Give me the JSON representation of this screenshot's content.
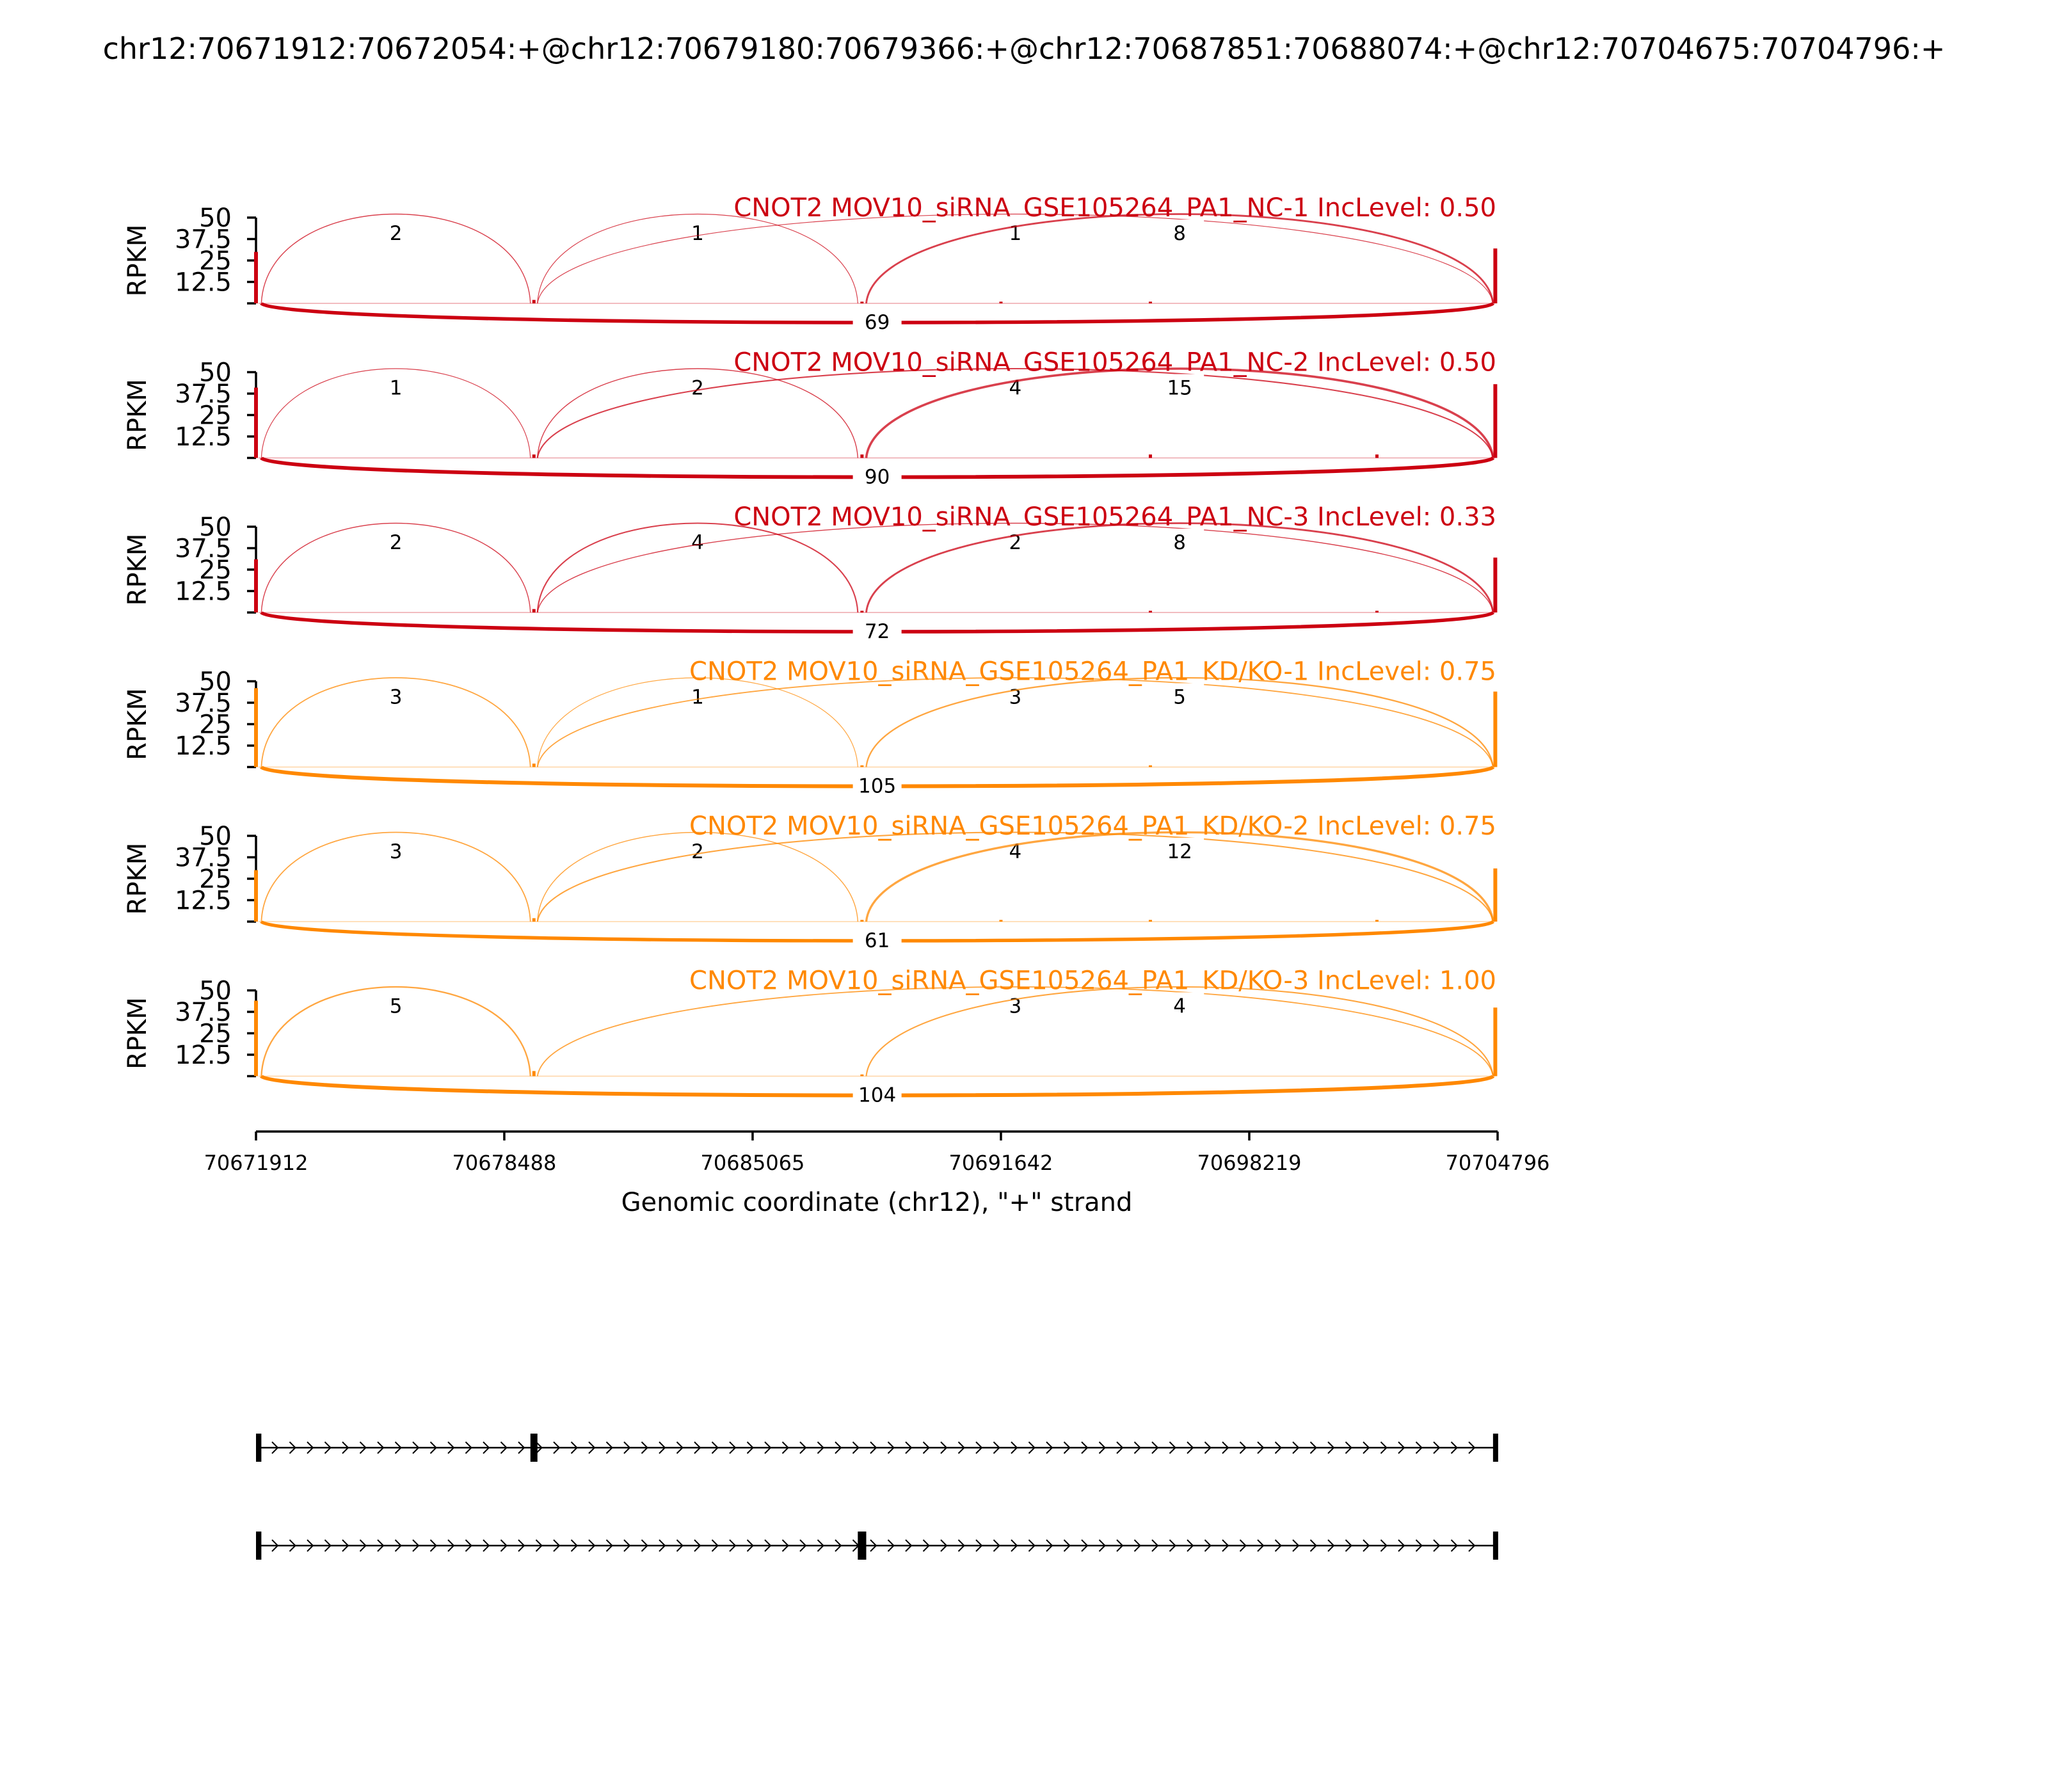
{
  "title": "chr12:70671912:70672054:+@chr12:70679180:70679366:+@chr12:70687851:70688074:+@chr12:70704675:70704796:+",
  "chart_data": {
    "type": "sashimi",
    "xlabel": "Genomic coordinate (chr12), \"+\" strand",
    "xlim": [
      70671912,
      70704796
    ],
    "xticks": [
      "70671912",
      "70678488",
      "70685065",
      "70691642",
      "70698219",
      "70704796"
    ],
    "ylabel": "RPKM",
    "ylim": [
      0,
      50
    ],
    "yticks": [
      "12.5",
      "25",
      "37.5",
      "50"
    ],
    "exons": [
      {
        "start": 70671912,
        "end": 70672054
      },
      {
        "start": 70679180,
        "end": 70679366
      },
      {
        "start": 70687851,
        "end": 70688074
      },
      {
        "start": 70704675,
        "end": 70704796
      }
    ],
    "samples": [
      {
        "title": "CNOT2 MOV10_siRNA_GSE105264_PA1_NC-1 IncLevel: 0.50",
        "color": "#cc0011",
        "exon_peaks": [
          {
            "x": 70671912,
            "y": 30
          },
          {
            "x": 70679273,
            "y": 2
          },
          {
            "x": 70687962,
            "y": 1
          },
          {
            "x": 70691642,
            "y": 1
          },
          {
            "x": 70695600,
            "y": 1
          },
          {
            "x": 70704735,
            "y": 32
          }
        ],
        "junctions": [
          {
            "from": 70672054,
            "to": 70679180,
            "count": "2",
            "side": "above"
          },
          {
            "from": 70679366,
            "to": 70687851,
            "count": "1",
            "side": "above"
          },
          {
            "from": 70679366,
            "to": 70704675,
            "count": "1",
            "side": "above"
          },
          {
            "from": 70688074,
            "to": 70704675,
            "count": "8",
            "side": "above"
          },
          {
            "from": 70672054,
            "to": 70704675,
            "count": "69",
            "side": "below"
          }
        ]
      },
      {
        "title": "CNOT2 MOV10_siRNA_GSE105264_PA1_NC-2 IncLevel: 0.50",
        "color": "#cc0011",
        "exon_peaks": [
          {
            "x": 70671912,
            "y": 41
          },
          {
            "x": 70679273,
            "y": 2
          },
          {
            "x": 70687962,
            "y": 2
          },
          {
            "x": 70695600,
            "y": 2
          },
          {
            "x": 70701600,
            "y": 2
          },
          {
            "x": 70704735,
            "y": 43
          }
        ],
        "junctions": [
          {
            "from": 70672054,
            "to": 70679180,
            "count": "1",
            "side": "above"
          },
          {
            "from": 70679366,
            "to": 70687851,
            "count": "2",
            "side": "above"
          },
          {
            "from": 70679366,
            "to": 70704675,
            "count": "4",
            "side": "above"
          },
          {
            "from": 70688074,
            "to": 70704675,
            "count": "15",
            "side": "above"
          },
          {
            "from": 70672054,
            "to": 70704675,
            "count": "90",
            "side": "below"
          }
        ]
      },
      {
        "title": "CNOT2 MOV10_siRNA_GSE105264_PA1_NC-3 IncLevel: 0.33",
        "color": "#cc0011",
        "exon_peaks": [
          {
            "x": 70671912,
            "y": 31
          },
          {
            "x": 70679273,
            "y": 2
          },
          {
            "x": 70687962,
            "y": 1
          },
          {
            "x": 70695600,
            "y": 1
          },
          {
            "x": 70701600,
            "y": 1
          },
          {
            "x": 70704735,
            "y": 32
          }
        ],
        "junctions": [
          {
            "from": 70672054,
            "to": 70679180,
            "count": "2",
            "side": "above"
          },
          {
            "from": 70679366,
            "to": 70687851,
            "count": "4",
            "side": "above"
          },
          {
            "from": 70679366,
            "to": 70704675,
            "count": "2",
            "side": "above"
          },
          {
            "from": 70688074,
            "to": 70704675,
            "count": "8",
            "side": "above"
          },
          {
            "from": 70672054,
            "to": 70704675,
            "count": "72",
            "side": "below"
          }
        ]
      },
      {
        "title": "CNOT2 MOV10_siRNA_GSE105264_PA1_KD/KO-1 IncLevel: 0.75",
        "color": "#ff8800",
        "exon_peaks": [
          {
            "x": 70671912,
            "y": 46
          },
          {
            "x": 70679273,
            "y": 2
          },
          {
            "x": 70687962,
            "y": 1
          },
          {
            "x": 70695600,
            "y": 1
          },
          {
            "x": 70704735,
            "y": 44
          }
        ],
        "junctions": [
          {
            "from": 70672054,
            "to": 70679180,
            "count": "3",
            "side": "above"
          },
          {
            "from": 70679366,
            "to": 70687851,
            "count": "1",
            "side": "above"
          },
          {
            "from": 70679366,
            "to": 70704675,
            "count": "3",
            "side": "above"
          },
          {
            "from": 70688074,
            "to": 70704675,
            "count": "5",
            "side": "above"
          },
          {
            "from": 70672054,
            "to": 70704675,
            "count": "105",
            "side": "below"
          }
        ]
      },
      {
        "title": "CNOT2 MOV10_siRNA_GSE105264_PA1_KD/KO-2 IncLevel: 0.75",
        "color": "#ff8800",
        "exon_peaks": [
          {
            "x": 70671912,
            "y": 30
          },
          {
            "x": 70679273,
            "y": 2
          },
          {
            "x": 70687962,
            "y": 1
          },
          {
            "x": 70691642,
            "y": 1
          },
          {
            "x": 70695600,
            "y": 1
          },
          {
            "x": 70701600,
            "y": 1
          },
          {
            "x": 70704735,
            "y": 31
          }
        ],
        "junctions": [
          {
            "from": 70672054,
            "to": 70679180,
            "count": "3",
            "side": "above"
          },
          {
            "from": 70679366,
            "to": 70687851,
            "count": "2",
            "side": "above"
          },
          {
            "from": 70679366,
            "to": 70704675,
            "count": "4",
            "side": "above"
          },
          {
            "from": 70688074,
            "to": 70704675,
            "count": "12",
            "side": "above"
          },
          {
            "from": 70672054,
            "to": 70704675,
            "count": "61",
            "side": "below"
          }
        ]
      },
      {
        "title": "CNOT2 MOV10_siRNA_GSE105264_PA1_KD/KO-3 IncLevel: 1.00",
        "color": "#ff8800",
        "exon_peaks": [
          {
            "x": 70671912,
            "y": 44
          },
          {
            "x": 70679273,
            "y": 3
          },
          {
            "x": 70687962,
            "y": 1
          },
          {
            "x": 70704735,
            "y": 40
          }
        ],
        "junctions": [
          {
            "from": 70672054,
            "to": 70679180,
            "count": "5",
            "side": "above"
          },
          {
            "from": 70679366,
            "to": 70704675,
            "count": "3",
            "side": "above"
          },
          {
            "from": 70688074,
            "to": 70704675,
            "count": "4",
            "side": "above"
          },
          {
            "from": 70672054,
            "to": 70704675,
            "count": "104",
            "side": "below"
          }
        ]
      }
    ],
    "isoforms": [
      {
        "exons": [
          [
            70671912,
            70672054
          ],
          [
            70679180,
            70679366
          ],
          [
            70704675,
            70704796
          ]
        ]
      },
      {
        "exons": [
          [
            70671912,
            70672054
          ],
          [
            70687851,
            70688074
          ],
          [
            70704675,
            70704796
          ]
        ]
      }
    ]
  }
}
